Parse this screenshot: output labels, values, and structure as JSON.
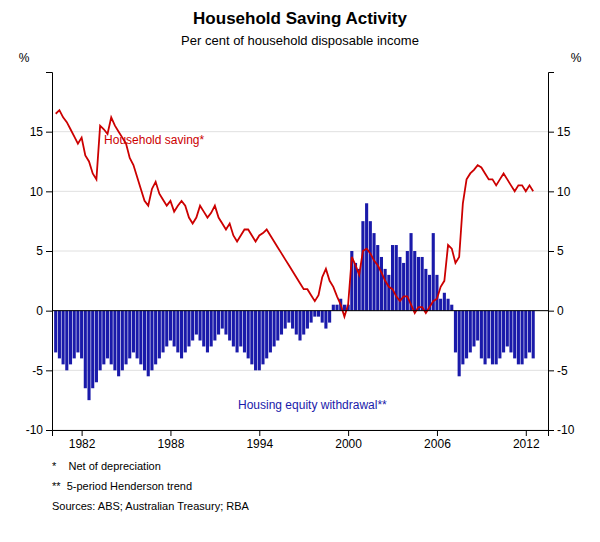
{
  "chart_data": {
    "type": "bar",
    "title": "Household Saving Activity",
    "subtitle": "Per cent of household disposable income",
    "ylabel": "%",
    "y2label": "%",
    "footnotes": [
      "*    Net of depreciation",
      "**  5-period Henderson trend",
      "Sources: ABS; Australian Treasury; RBA"
    ],
    "xlim": [
      1980.0,
      2013.5
    ],
    "xticks": [
      1982,
      1988,
      1994,
      2000,
      2006,
      2012
    ],
    "ylim": [
      -10,
      20
    ],
    "yticks": [
      -10,
      -5,
      0,
      5,
      10,
      15
    ],
    "y2lim": [
      -10,
      20
    ],
    "y2ticks": [
      -10,
      -5,
      0,
      5,
      10,
      15
    ],
    "grid": true,
    "x": [
      1980.25,
      1980.5,
      1980.75,
      1981.0,
      1981.25,
      1981.5,
      1981.75,
      1982.0,
      1982.25,
      1982.5,
      1982.75,
      1983.0,
      1983.25,
      1983.5,
      1983.75,
      1984.0,
      1984.25,
      1984.5,
      1984.75,
      1985.0,
      1985.25,
      1985.5,
      1985.75,
      1986.0,
      1986.25,
      1986.5,
      1986.75,
      1987.0,
      1987.25,
      1987.5,
      1987.75,
      1988.0,
      1988.25,
      1988.5,
      1988.75,
      1989.0,
      1989.25,
      1989.5,
      1989.75,
      1990.0,
      1990.25,
      1990.5,
      1990.75,
      1991.0,
      1991.25,
      1991.5,
      1991.75,
      1992.0,
      1992.25,
      1992.5,
      1992.75,
      1993.0,
      1993.25,
      1993.5,
      1993.75,
      1994.0,
      1994.25,
      1994.5,
      1994.75,
      1995.0,
      1995.25,
      1995.5,
      1995.75,
      1996.0,
      1996.25,
      1996.5,
      1996.75,
      1997.0,
      1997.25,
      1997.5,
      1997.75,
      1998.0,
      1998.25,
      1998.5,
      1998.75,
      1999.0,
      1999.25,
      1999.5,
      1999.75,
      2000.0,
      2000.25,
      2000.5,
      2000.75,
      2001.0,
      2001.25,
      2001.5,
      2001.75,
      2002.0,
      2002.25,
      2002.5,
      2002.75,
      2003.0,
      2003.25,
      2003.5,
      2003.75,
      2004.0,
      2004.25,
      2004.5,
      2004.75,
      2005.0,
      2005.25,
      2005.5,
      2005.75,
      2006.0,
      2006.25,
      2006.5,
      2006.75,
      2007.0,
      2007.25,
      2007.5,
      2007.75,
      2008.0,
      2008.25,
      2008.5,
      2008.75,
      2009.0,
      2009.25,
      2009.5,
      2009.75,
      2010.0,
      2010.25,
      2010.5,
      2010.75,
      2011.0,
      2011.25,
      2011.5,
      2011.75,
      2012.0,
      2012.25,
      2012.5
    ],
    "series": [
      {
        "name": "Housing equity withdrawal**",
        "type": "bar",
        "color": "#1a1aaa",
        "values": [
          -3.5,
          -4.0,
          -4.5,
          -5.0,
          -4.5,
          -4.0,
          -3.5,
          -4.0,
          -6.5,
          -7.5,
          -6.5,
          -6.0,
          -5.0,
          -4.5,
          -4.0,
          -4.5,
          -5.0,
          -5.5,
          -5.0,
          -4.5,
          -4.0,
          -3.5,
          -4.0,
          -4.5,
          -5.0,
          -5.5,
          -5.0,
          -4.5,
          -4.0,
          -3.5,
          -3.0,
          -2.5,
          -3.0,
          -3.5,
          -4.0,
          -3.5,
          -3.0,
          -2.5,
          -2.0,
          -2.5,
          -3.0,
          -3.5,
          -3.0,
          -2.5,
          -2.0,
          -1.5,
          -2.0,
          -2.5,
          -3.0,
          -3.5,
          -3.0,
          -3.5,
          -4.0,
          -4.5,
          -5.0,
          -5.0,
          -4.5,
          -4.0,
          -3.5,
          -3.0,
          -2.5,
          -2.0,
          -1.5,
          -1.0,
          -1.5,
          -2.0,
          -2.5,
          -2.0,
          -1.5,
          -1.0,
          -0.5,
          -0.5,
          -1.0,
          -1.5,
          -1.0,
          0.5,
          0.5,
          1.0,
          0.5,
          0.5,
          5.0,
          4.0,
          3.5,
          7.5,
          9.0,
          7.5,
          6.5,
          5.5,
          4.5,
          3.5,
          3.0,
          5.5,
          5.5,
          4.5,
          4.0,
          5.0,
          6.5,
          5.0,
          4.5,
          4.5,
          3.5,
          3.0,
          6.5,
          3.0,
          1.0,
          1.5,
          1.0,
          0.5,
          -3.5,
          -5.5,
          -4.5,
          -4.0,
          -3.5,
          -3.0,
          -2.5,
          -4.0,
          -4.5,
          -4.0,
          -4.5,
          -4.5,
          -4.0,
          -3.5,
          -3.0,
          -3.5,
          -4.0,
          -4.5,
          -4.5,
          -4.0,
          -3.5,
          -4.0
        ]
      },
      {
        "name": "Household saving*",
        "type": "line",
        "color": "#cc0000",
        "values": [
          16.5,
          16.8,
          16.2,
          15.8,
          15.2,
          14.6,
          14.0,
          14.5,
          13.0,
          12.5,
          11.5,
          11.0,
          15.5,
          15.2,
          14.8,
          16.2,
          15.5,
          15.0,
          14.5,
          14.0,
          12.8,
          12.2,
          11.2,
          10.2,
          9.2,
          8.8,
          10.2,
          10.8,
          9.8,
          9.3,
          8.8,
          9.2,
          8.3,
          8.8,
          9.2,
          8.8,
          7.8,
          7.3,
          7.8,
          8.8,
          8.3,
          7.8,
          8.2,
          8.8,
          7.8,
          7.3,
          6.8,
          7.3,
          6.3,
          5.8,
          6.3,
          6.8,
          6.8,
          6.3,
          5.8,
          6.3,
          6.5,
          6.8,
          6.3,
          5.8,
          5.3,
          4.8,
          4.3,
          3.8,
          3.3,
          2.8,
          2.3,
          1.8,
          1.8,
          1.3,
          0.8,
          1.3,
          2.8,
          3.5,
          2.5,
          2.0,
          1.2,
          0.5,
          -0.5,
          0.5,
          4.5,
          3.8,
          3.0,
          5.0,
          5.2,
          4.8,
          4.2,
          3.8,
          3.2,
          2.5,
          2.0,
          1.8,
          1.2,
          0.8,
          1.2,
          1.2,
          0.5,
          -0.2,
          0.3,
          0.3,
          -0.2,
          0.3,
          0.8,
          1.0,
          2.0,
          2.5,
          5.5,
          5.2,
          4.0,
          4.5,
          9.0,
          11.0,
          11.5,
          11.8,
          12.2,
          12.0,
          11.5,
          11.0,
          11.0,
          10.5,
          11.0,
          11.5,
          11.0,
          10.5,
          10.0,
          10.5,
          10.5,
          10.0,
          10.5,
          10.0
        ]
      }
    ]
  }
}
